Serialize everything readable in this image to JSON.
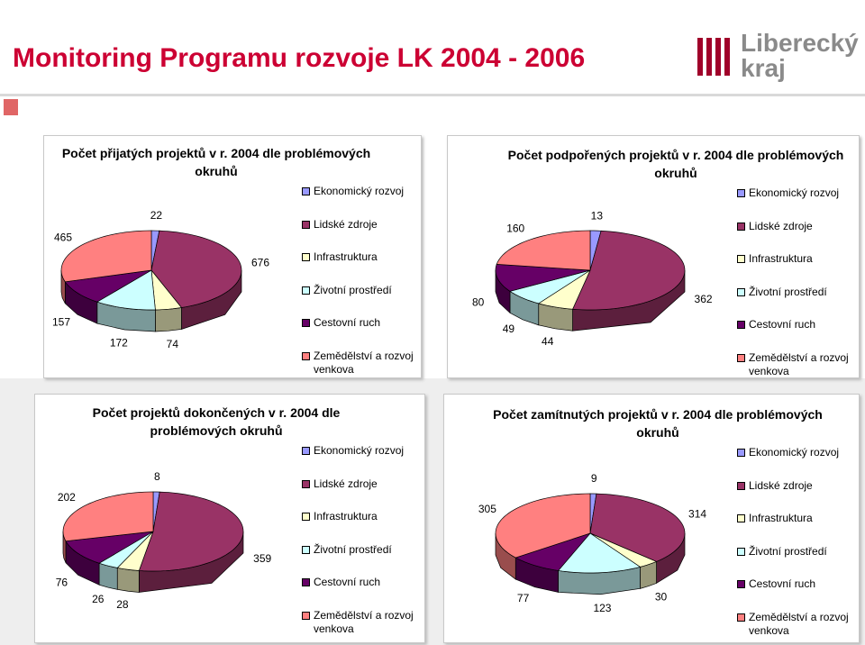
{
  "header": {
    "title": "Monitoring Programu rozvoje LK 2004 - 2006",
    "logo": [
      "Liberecký",
      "kraj"
    ]
  },
  "chart_data": [
    {
      "type": "pie",
      "title": "Počet přijatých projektů v r. 2004 dle problémových okruhů",
      "categories": [
        "Ekonomický rozvoj",
        "Lidské zdroje",
        "Infrastruktura",
        "Životní prostředí",
        "Cestovní ruch",
        "Zemědělství a rozvoj venkova"
      ],
      "values": [
        22,
        676,
        74,
        172,
        157,
        465
      ],
      "colors": [
        "#9999ff",
        "#993366",
        "#ffffcc",
        "#ccffff",
        "#660066",
        "#ff8080"
      ],
      "legend": "right"
    },
    {
      "type": "pie",
      "title": "Počet podpořených projektů v r. 2004 dle problémových okruhů",
      "categories": [
        "Ekonomický rozvoj",
        "Lidské zdroje",
        "Infrastruktura",
        "Životní prostředí",
        "Cestovní ruch",
        "Zemědělství a rozvoj venkova"
      ],
      "values": [
        13,
        362,
        44,
        49,
        80,
        160
      ],
      "colors": [
        "#9999ff",
        "#993366",
        "#ffffcc",
        "#ccffff",
        "#660066",
        "#ff8080"
      ],
      "legend": "right"
    },
    {
      "type": "pie",
      "title": "Počet projektů dokončených v r. 2004 dle problémových okruhů",
      "categories": [
        "Ekonomický rozvoj",
        "Lidské zdroje",
        "Infrastruktura",
        "Životní prostředí",
        "Cestovní ruch",
        "Zemědělství a rozvoj venkova"
      ],
      "values": [
        8,
        359,
        28,
        26,
        76,
        202
      ],
      "colors": [
        "#9999ff",
        "#993366",
        "#ffffcc",
        "#ccffff",
        "#660066",
        "#ff8080"
      ],
      "legend": "right"
    },
    {
      "type": "pie",
      "title": "Počet zamítnutých projektů v r. 2004 dle problémových okruhů",
      "categories": [
        "Ekonomický rozvoj",
        "Lidské zdroje",
        "Infrastruktura",
        "Životní prostředí",
        "Cestovní ruch",
        "Zemědělství a rozvoj venkova"
      ],
      "values": [
        9,
        314,
        30,
        123,
        77,
        305
      ],
      "colors": [
        "#9999ff",
        "#993366",
        "#ffffcc",
        "#ccffff",
        "#660066",
        "#ff8080"
      ],
      "legend": "right"
    }
  ]
}
